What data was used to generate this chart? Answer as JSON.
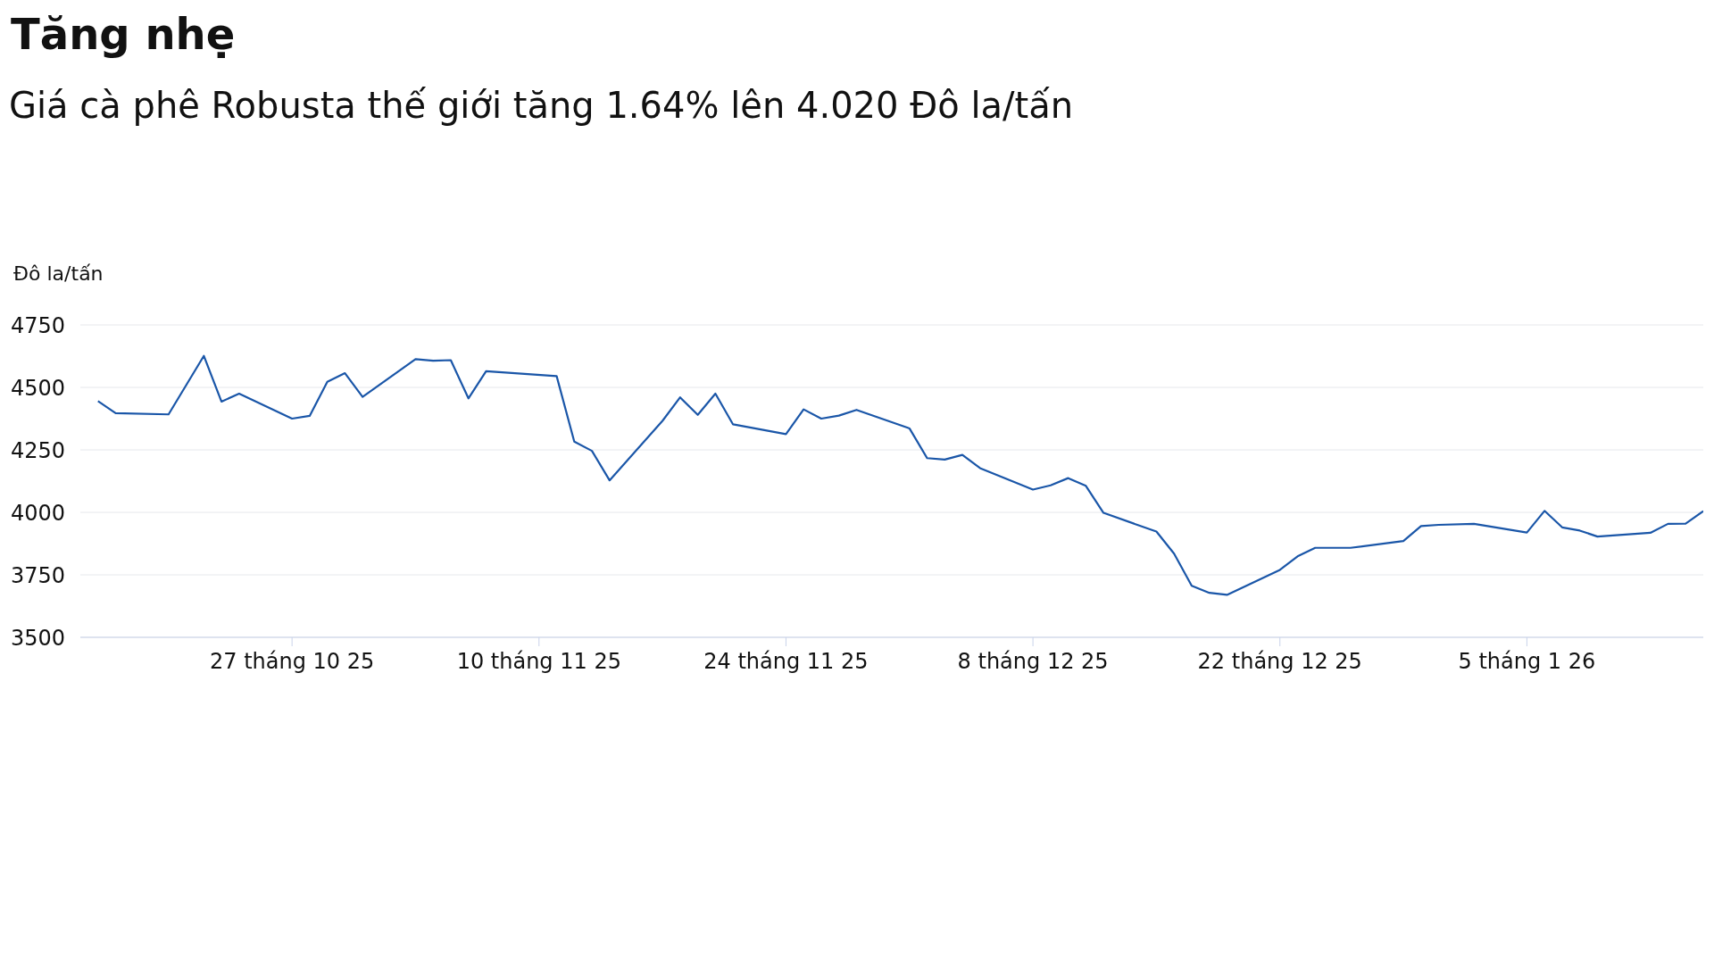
{
  "chart_data": {
    "type": "line",
    "title": "Tăng nhẹ",
    "subtitle": "Giá cà phê Robusta thế giới tăng 1.64% lên 4.020 Đô la/tấn",
    "ylabel": "Đô la/tấn",
    "x": [
      "2025-10-16",
      "2025-10-17",
      "2025-10-20",
      "2025-10-22",
      "2025-10-23",
      "2025-10-24",
      "2025-10-27",
      "2025-10-28",
      "2025-10-29",
      "2025-10-30",
      "2025-10-31",
      "2025-11-03",
      "2025-11-04",
      "2025-11-05",
      "2025-11-06",
      "2025-11-07",
      "2025-11-11",
      "2025-11-12",
      "2025-11-13",
      "2025-11-14",
      "2025-11-17",
      "2025-11-18",
      "2025-11-19",
      "2025-11-20",
      "2025-11-21",
      "2025-11-24",
      "2025-11-25",
      "2025-11-26",
      "2025-11-27",
      "2025-11-28",
      "2025-12-01",
      "2025-12-02",
      "2025-12-03",
      "2025-12-04",
      "2025-12-05",
      "2025-12-08",
      "2025-12-09",
      "2025-12-10",
      "2025-12-11",
      "2025-12-12",
      "2025-12-15",
      "2025-12-16",
      "2025-12-17",
      "2025-12-18",
      "2025-12-19",
      "2025-12-22",
      "2025-12-23",
      "2025-12-24",
      "2025-12-26",
      "2025-12-29",
      "2025-12-30",
      "2025-12-31",
      "2026-01-02",
      "2026-01-05",
      "2026-01-06",
      "2026-01-07",
      "2026-01-08",
      "2026-01-09",
      "2026-01-12",
      "2026-01-13",
      "2026-01-14",
      "2026-01-15"
    ],
    "series": [
      {
        "color": "#1a56a8",
        "values": [
          4445,
          4397,
          4392,
          4626,
          4443,
          4475,
          4375,
          4386,
          4522,
          4557,
          4462,
          4613,
          4607,
          4609,
          4456,
          4565,
          4545,
          4283,
          4246,
          4128,
          4366,
          4460,
          4390,
          4475,
          4352,
          4313,
          4412,
          4375,
          4387,
          4410,
          4336,
          4217,
          4211,
          4230,
          4177,
          4091,
          4108,
          4137,
          4106,
          3998,
          3923,
          3835,
          3706,
          3678,
          3670,
          3770,
          3824,
          3858,
          3858,
          3885,
          3945,
          3950,
          3954,
          3919,
          4006,
          3940,
          3927,
          3903,
          3918,
          3954,
          3955,
          4005
        ]
      }
    ],
    "xlim": [
      "2025-10-15",
      "2026-01-15"
    ],
    "xticks": [
      {
        "value": "2025-10-27",
        "label": "27 tháng 10 25"
      },
      {
        "value": "2025-11-10",
        "label": "10 tháng 11 25"
      },
      {
        "value": "2025-11-24",
        "label": "24 tháng 11 25"
      },
      {
        "value": "2025-12-08",
        "label": "8 tháng 12 25"
      },
      {
        "value": "2025-12-22",
        "label": "22 tháng 12 25"
      },
      {
        "value": "2026-01-05",
        "label": "5 tháng 1 26"
      }
    ],
    "ylim": [
      3500,
      4750
    ],
    "yticks": [
      3500,
      3750,
      4000,
      4250,
      4500,
      4750
    ],
    "grid": "y",
    "marker": "none",
    "line_style": "solid"
  }
}
